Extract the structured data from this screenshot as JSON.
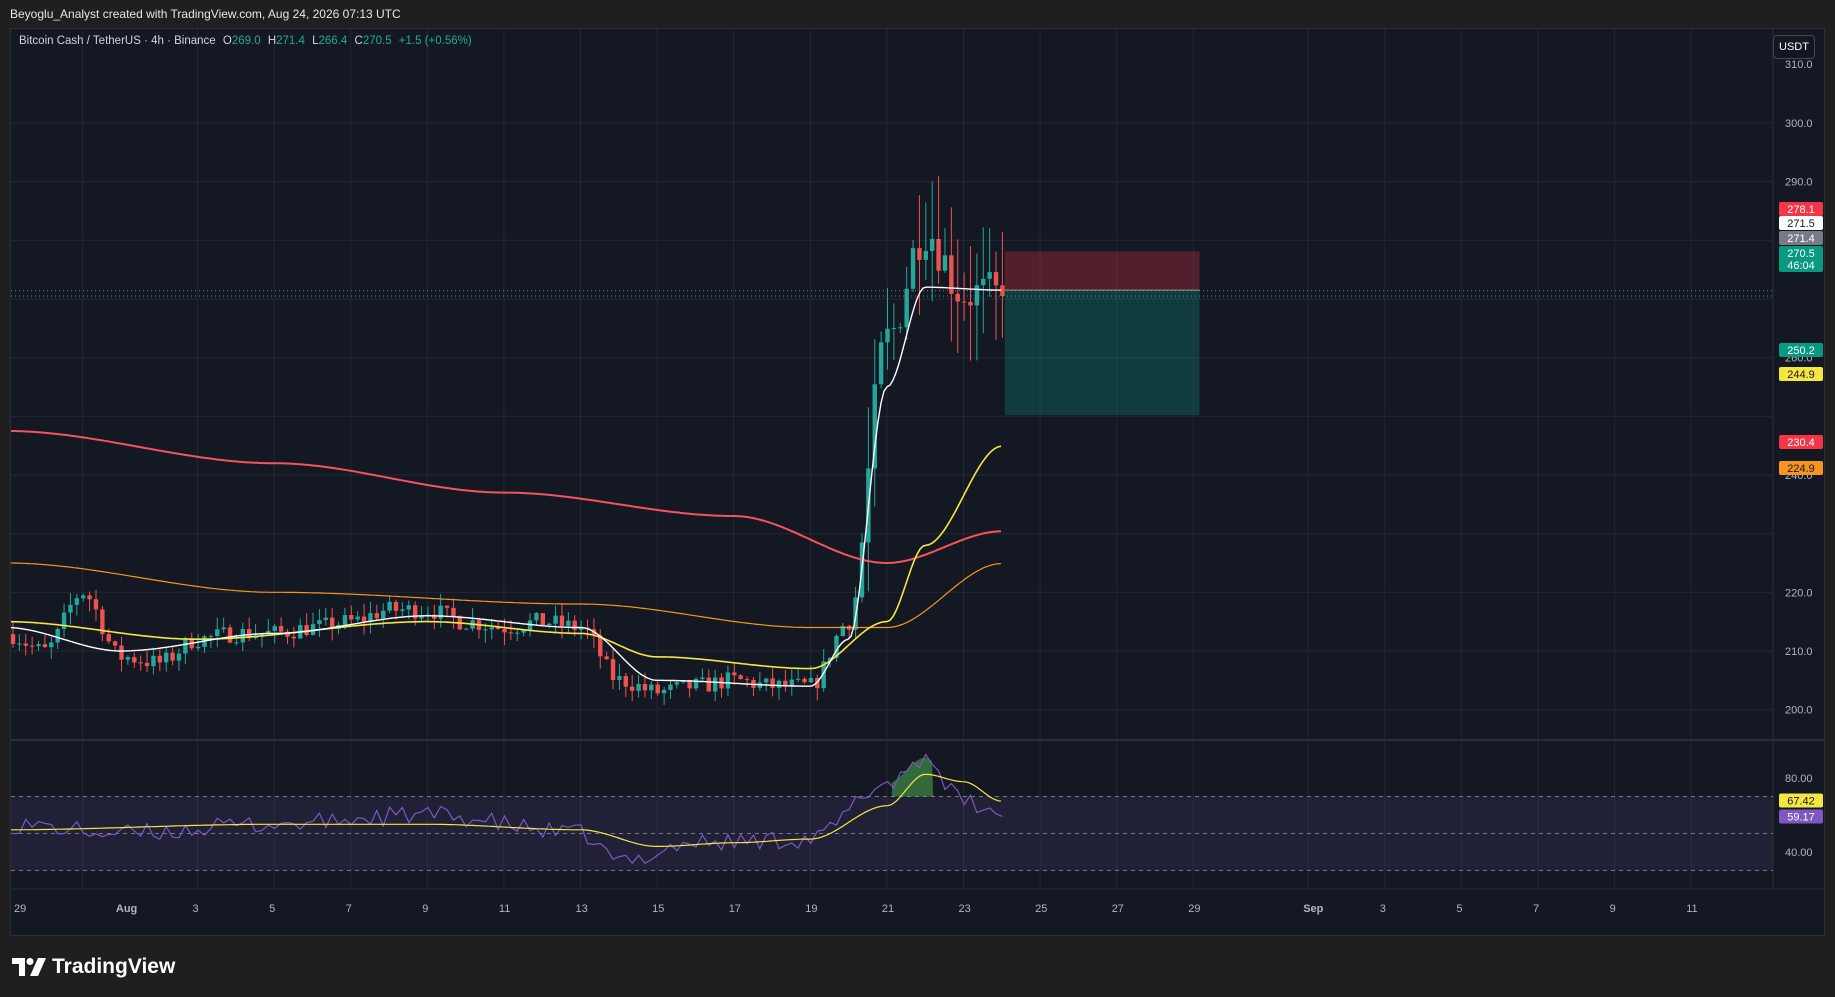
{
  "header": {
    "title": "Beyoglu_Analyst created with TradingView.com, Aug 24, 2026 07:13 UTC"
  },
  "legend": {
    "symbol": "Bitcoin Cash / TetherUS · 4h · Binance",
    "open_label": "O",
    "open": "269.0",
    "high_label": "H",
    "high": "271.4",
    "low_label": "L",
    "low": "266.4",
    "close_label": "C",
    "close": "270.5",
    "change": "+1.5 (+0.56%)"
  },
  "currency_button": "USDT",
  "brand": "TradingView",
  "colors": {
    "background": "#141823",
    "grid": "#232733",
    "up": "#26a69a",
    "down": "#ef5350",
    "ema_fast": "#ffffff",
    "ema_mid": "#f5e642",
    "ema_slow": "#f7525f",
    "ema_long": "#f7941d",
    "rsi": "#7e57c2",
    "rsi_ma": "#f5e642"
  },
  "price_axis": {
    "ticks": [
      "310.0",
      "300.0",
      "290.0",
      "260.0",
      "240.0",
      "220.0",
      "210.0",
      "200.0"
    ]
  },
  "rsi_axis": {
    "ticks": [
      "80.00",
      "40.00"
    ]
  },
  "time_axis": {
    "labels": [
      "29",
      "Aug",
      "3",
      "5",
      "7",
      "9",
      "11",
      "13",
      "15",
      "17",
      "19",
      "21",
      "23",
      "25",
      "27",
      "29",
      "Sep",
      "3",
      "5",
      "7",
      "9",
      "11"
    ]
  },
  "price_tags": [
    {
      "text": "278.1",
      "bg": "#f23645",
      "fg": "#ffffff"
    },
    {
      "text": "271.5",
      "bg": "#ffffff",
      "fg": "#131722"
    },
    {
      "text": "271.4",
      "bg": "#787b86",
      "fg": "#ffffff"
    },
    {
      "text": "270.5",
      "bg": "#089981",
      "fg": "#ffffff",
      "sub": "46:04"
    },
    {
      "text": "250.2",
      "bg": "#089981",
      "fg": "#ffffff"
    },
    {
      "text": "244.9",
      "bg": "#f5e642",
      "fg": "#131722"
    },
    {
      "text": "230.4",
      "bg": "#f23645",
      "fg": "#ffffff"
    },
    {
      "text": "224.9",
      "bg": "#f7941d",
      "fg": "#131722"
    }
  ],
  "rsi_tags": [
    {
      "text": "67.42",
      "bg": "#f5e642",
      "fg": "#131722"
    },
    {
      "text": "59.17",
      "bg": "#7e57c2",
      "fg": "#ffffff"
    }
  ],
  "chart_data": {
    "type": "candlestick",
    "symbol": "BCHUSDT",
    "timeframe": "4h",
    "price_range": [
      195,
      316
    ],
    "last": {
      "open": 269.0,
      "high": 271.4,
      "low": 266.4,
      "close": 270.5
    },
    "price_anchors": [
      [
        "Jul 29",
        213
      ],
      [
        "Jul 30",
        210
      ],
      [
        "Jul 31",
        220
      ],
      [
        "Aug 1",
        209
      ],
      [
        "Aug 2",
        208
      ],
      [
        "Aug 3",
        212
      ],
      [
        "Aug 4",
        213
      ],
      [
        "Aug 5",
        213
      ],
      [
        "Aug 6",
        214
      ],
      [
        "Aug 7",
        215
      ],
      [
        "Aug 8",
        217
      ],
      [
        "Aug 9",
        217
      ],
      [
        "Aug 10",
        215
      ],
      [
        "Aug 11",
        214
      ],
      [
        "Aug 12",
        215
      ],
      [
        "Aug 13",
        214
      ],
      [
        "Aug 14",
        205
      ],
      [
        "Aug 15",
        203
      ],
      [
        "Aug 16",
        204
      ],
      [
        "Aug 17",
        205
      ],
      [
        "Aug 18",
        204
      ],
      [
        "Aug 19",
        204
      ],
      [
        "Aug 20",
        215
      ],
      [
        "Aug 21",
        263
      ],
      [
        "Aug 22",
        282
      ],
      [
        "Aug 23",
        271
      ],
      [
        "Aug 24",
        270.5
      ]
    ],
    "ema_fast_anchors": [
      [
        "Jul 29",
        214
      ],
      [
        "Aug 1",
        210
      ],
      [
        "Aug 5",
        213
      ],
      [
        "Aug 9",
        216
      ],
      [
        "Aug 13",
        214
      ],
      [
        "Aug 15",
        205
      ],
      [
        "Aug 19",
        204
      ],
      [
        "Aug 20",
        212
      ],
      [
        "Aug 21",
        255
      ],
      [
        "Aug 22",
        272
      ],
      [
        "Aug 24",
        271.5
      ]
    ],
    "ema_mid_anchors": [
      [
        "Jul 29",
        215
      ],
      [
        "Aug 3",
        212
      ],
      [
        "Aug 9",
        215
      ],
      [
        "Aug 13",
        213
      ],
      [
        "Aug 15",
        209
      ],
      [
        "Aug 19",
        207
      ],
      [
        "Aug 21",
        215
      ],
      [
        "Aug 22",
        228
      ],
      [
        "Aug 24",
        244.9
      ]
    ],
    "ema_slow_anchors": [
      [
        "Jul 29",
        247.5
      ],
      [
        "Aug 5",
        242
      ],
      [
        "Aug 11",
        237
      ],
      [
        "Aug 17",
        233
      ],
      [
        "Aug 21",
        225
      ],
      [
        "Aug 24",
        230.4
      ]
    ],
    "ema_long_anchors": [
      [
        "Jul 29",
        225
      ],
      [
        "Aug 5",
        220
      ],
      [
        "Aug 13",
        218
      ],
      [
        "Aug 19",
        214
      ],
      [
        "Aug 21",
        214
      ],
      [
        "Aug 24",
        224.9
      ]
    ],
    "position": {
      "stop": 278.1,
      "entry": 271.5,
      "target": 250.2,
      "start": "Aug 24",
      "end": "Aug 30"
    },
    "rsi": {
      "range": [
        20,
        100
      ],
      "levels": [
        70,
        50,
        30
      ],
      "anchors": [
        [
          "Jul 29",
          55
        ],
        [
          "Aug 1",
          50
        ],
        [
          "Aug 5",
          55
        ],
        [
          "Aug 9",
          60
        ],
        [
          "Aug 13",
          50
        ],
        [
          "Aug 14",
          35
        ],
        [
          "Aug 16",
          45
        ],
        [
          "Aug 19",
          47
        ],
        [
          "Aug 21",
          77
        ],
        [
          "Aug 22",
          91
        ],
        [
          "Aug 23",
          67
        ],
        [
          "Aug 24",
          59.17
        ]
      ],
      "ma_anchors": [
        [
          "Jul 29",
          52
        ],
        [
          "Aug 5",
          55
        ],
        [
          "Aug 9",
          55
        ],
        [
          "Aug 13",
          52
        ],
        [
          "Aug 15",
          43
        ],
        [
          "Aug 17",
          45
        ],
        [
          "Aug 19",
          47
        ],
        [
          "Aug 21",
          65
        ],
        [
          "Aug 22",
          82
        ],
        [
          "Aug 23",
          78
        ],
        [
          "Aug 24",
          67.42
        ]
      ]
    }
  }
}
